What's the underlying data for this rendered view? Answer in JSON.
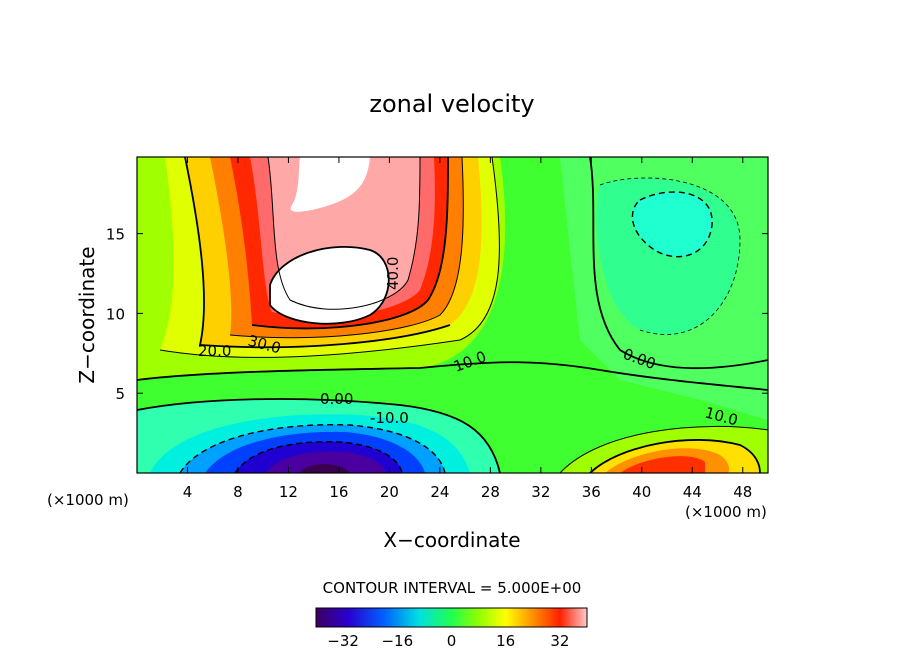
{
  "chart_data": {
    "type": "heatmap",
    "title": "zonal velocity",
    "xlabel": "X−coordinate",
    "ylabel": "Z−coordinate",
    "x_units": "(×1000 m)",
    "xlim": [
      0,
      50
    ],
    "ylim": [
      0,
      19.8
    ],
    "x_ticks": [
      "4",
      "8",
      "12",
      "16",
      "20",
      "24",
      "28",
      "32",
      "36",
      "40",
      "44",
      "48"
    ],
    "y_ticks": [
      "5",
      "10",
      "15"
    ],
    "contour_interval_text": "CONTOUR INTERVAL = 5.000E+00",
    "contour_labels": [
      "40.0",
      "30.0",
      "20.0",
      "10.0",
      "0.00",
      "-10.0",
      "0.00",
      "10.0"
    ],
    "colorbar": {
      "vmin": -40,
      "vmax": 40,
      "tick_labels": [
        "−32",
        "−16",
        "0",
        "16",
        "32"
      ]
    },
    "features": [
      {
        "name": "positive jet core",
        "x": 15.5,
        "z": 12.5,
        "value": "> 40"
      },
      {
        "name": "upper positive core",
        "x": 16.5,
        "z": 18.5,
        "value": "> 40"
      },
      {
        "name": "negative core near bottom",
        "x": 15,
        "z": 0.5,
        "value": "< -32"
      },
      {
        "name": "weak negative cell",
        "x": 42.5,
        "z": 15.5,
        "value": "-10"
      },
      {
        "name": "bottom-right positive cell",
        "x": 42,
        "z": 0.8,
        "value": "25-30"
      }
    ]
  }
}
